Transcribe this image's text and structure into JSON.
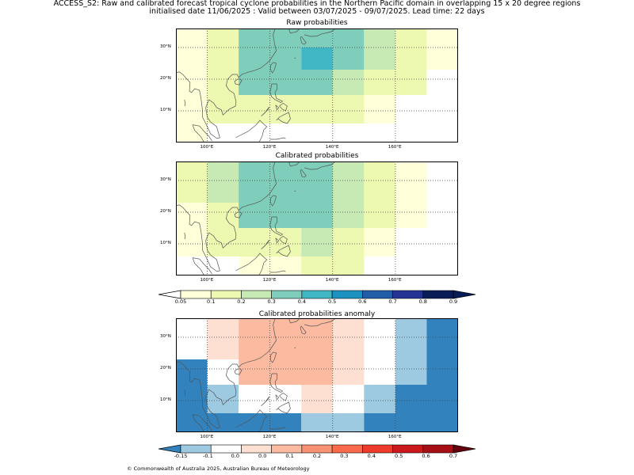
{
  "header": {
    "line1": "ACCESS_S2: Raw and calibrated forecast tropical cyclone probabilities in the Northern Pacific domain in overlapping 15 x 20 degree regions",
    "line2": "initialised date 11/06/2025 :  Valid between 03/07/2025 - 09/07/2025. Lead time: 22 days"
  },
  "panels": {
    "raw_title": "Raw probabilities",
    "cal_title": "Calibrated probabilities",
    "anom_title": "Calibrated probabilities anomaly"
  },
  "axes": {
    "lon_labels": [
      "100°E",
      "120°E",
      "140°E",
      "160°E"
    ],
    "lon_values": [
      100,
      120,
      140,
      160
    ],
    "lat_labels": [
      "30°N",
      "20°N",
      "10°N"
    ],
    "lat_values": [
      30,
      20,
      10
    ],
    "lon_range": [
      90,
      180
    ],
    "lat_range": [
      0,
      36
    ]
  },
  "colorbars": {
    "prob": {
      "ticks": [
        "0.05",
        "0.1",
        "0.2",
        "0.3",
        "0.4",
        "0.5",
        "0.6",
        "0.7",
        "0.8",
        "0.9"
      ],
      "colors": [
        "#ffffd9",
        "#edf8b1",
        "#c7e9b4",
        "#7fcdbb",
        "#41b6c4",
        "#1d91c0",
        "#225ea8",
        "#253494",
        "#081d58"
      ],
      "under_color": "#ffffff",
      "over_color": "#081d58"
    },
    "anom": {
      "ticks": [
        "-0.15",
        "-0.1",
        "0.0",
        "0.0",
        "0.1",
        "0.2",
        "0.3",
        "0.4",
        "0.5",
        "0.6",
        "0.7"
      ],
      "colors": [
        "#9ecae1",
        "#ffffff",
        "#fee0d2",
        "#fcbba1",
        "#fc9272",
        "#fb6a4a",
        "#ef3b2c",
        "#cb181d",
        "#a50f15"
      ],
      "under_color": "#3182bd",
      "over_color": "#67000d"
    }
  },
  "chart_data": [
    {
      "type": "heatmap",
      "title": "Raw probabilities",
      "cells": [
        {
          "lon": [
            90,
            100
          ],
          "lat": [
            23,
            36
          ],
          "value": "0.05-0.1"
        },
        {
          "lon": [
            100,
            110
          ],
          "lat": [
            23,
            36
          ],
          "value": "0.1-0.2"
        },
        {
          "lon": [
            110,
            130
          ],
          "lat": [
            23,
            36
          ],
          "value": "0.3-0.4"
        },
        {
          "lon": [
            130,
            140
          ],
          "lat": [
            30,
            36
          ],
          "value": "0.3-0.4"
        },
        {
          "lon": [
            130,
            140
          ],
          "lat": [
            23,
            30
          ],
          "value": "0.4-0.5"
        },
        {
          "lon": [
            140,
            150
          ],
          "lat": [
            23,
            36
          ],
          "value": "0.3-0.4"
        },
        {
          "lon": [
            150,
            160
          ],
          "lat": [
            23,
            36
          ],
          "value": "0.2-0.3"
        },
        {
          "lon": [
            160,
            170
          ],
          "lat": [
            23,
            36
          ],
          "value": "0.1-0.2"
        },
        {
          "lon": [
            170,
            180
          ],
          "lat": [
            23,
            36
          ],
          "value": "0.05-0.1"
        },
        {
          "lon": [
            90,
            100
          ],
          "lat": [
            15,
            23
          ],
          "value": "0.05-0.1"
        },
        {
          "lon": [
            100,
            110
          ],
          "lat": [
            15,
            23
          ],
          "value": "0.1-0.2"
        },
        {
          "lon": [
            110,
            140
          ],
          "lat": [
            15,
            23
          ],
          "value": "0.3-0.4"
        },
        {
          "lon": [
            140,
            150
          ],
          "lat": [
            15,
            23
          ],
          "value": "0.2-0.3"
        },
        {
          "lon": [
            150,
            170
          ],
          "lat": [
            15,
            23
          ],
          "value": "0.1-0.2"
        },
        {
          "lon": [
            90,
            100
          ],
          "lat": [
            6,
            15
          ],
          "value": "0.05-0.1"
        },
        {
          "lon": [
            100,
            110
          ],
          "lat": [
            6,
            15
          ],
          "value": "0.1-0.2"
        },
        {
          "lon": [
            110,
            150
          ],
          "lat": [
            6,
            15
          ],
          "value": "0.1-0.2"
        },
        {
          "lon": [
            150,
            160
          ],
          "lat": [
            6,
            15
          ],
          "value": "0.05-0.1"
        },
        {
          "lon": [
            90,
            100
          ],
          "lat": [
            0,
            6
          ],
          "value": "0.05-0.1"
        },
        {
          "lon": [
            110,
            150
          ],
          "lat": [
            6,
            6
          ],
          "value": "0.1-0.2"
        }
      ]
    },
    {
      "type": "heatmap",
      "title": "Calibrated probabilities",
      "cells": [
        {
          "lon": [
            90,
            100
          ],
          "lat": [
            23,
            36
          ],
          "value": "0.1-0.2"
        },
        {
          "lon": [
            100,
            110
          ],
          "lat": [
            23,
            36
          ],
          "value": "0.2-0.3"
        },
        {
          "lon": [
            110,
            140
          ],
          "lat": [
            23,
            36
          ],
          "value": "0.3-0.4"
        },
        {
          "lon": [
            140,
            150
          ],
          "lat": [
            23,
            36
          ],
          "value": "0.2-0.3"
        },
        {
          "lon": [
            150,
            160
          ],
          "lat": [
            23,
            36
          ],
          "value": "0.1-0.2"
        },
        {
          "lon": [
            160,
            170
          ],
          "lat": [
            23,
            36
          ],
          "value": "0.05-0.1"
        },
        {
          "lon": [
            90,
            100
          ],
          "lat": [
            15,
            23
          ],
          "value": "0.05-0.1"
        },
        {
          "lon": [
            100,
            110
          ],
          "lat": [
            15,
            23
          ],
          "value": "0.1-0.2"
        },
        {
          "lon": [
            110,
            140
          ],
          "lat": [
            15,
            23
          ],
          "value": "0.3-0.4"
        },
        {
          "lon": [
            140,
            150
          ],
          "lat": [
            15,
            23
          ],
          "value": "0.2-0.3"
        },
        {
          "lon": [
            150,
            160
          ],
          "lat": [
            15,
            23
          ],
          "value": "0.1-0.2"
        },
        {
          "lon": [
            160,
            170
          ],
          "lat": [
            15,
            23
          ],
          "value": "0.05-0.1"
        },
        {
          "lon": [
            90,
            100
          ],
          "lat": [
            6,
            15
          ],
          "value": "0.05-0.1"
        },
        {
          "lon": [
            100,
            110
          ],
          "lat": [
            6,
            15
          ],
          "value": "0.1-0.2"
        },
        {
          "lon": [
            110,
            130
          ],
          "lat": [
            6,
            15
          ],
          "value": "0.1-0.2"
        },
        {
          "lon": [
            130,
            140
          ],
          "lat": [
            6,
            15
          ],
          "value": "0.2-0.3"
        },
        {
          "lon": [
            140,
            150
          ],
          "lat": [
            6,
            15
          ],
          "value": "0.1-0.2"
        },
        {
          "lon": [
            150,
            160
          ],
          "lat": [
            6,
            15
          ],
          "value": "0.05-0.1"
        },
        {
          "lon": [
            110,
            130
          ],
          "lat": [
            0,
            6
          ],
          "value": "0.05-0.1"
        },
        {
          "lon": [
            130,
            150
          ],
          "lat": [
            0,
            6
          ],
          "value": "0.1-0.2"
        }
      ]
    },
    {
      "type": "heatmap",
      "title": "Calibrated probabilities anomaly",
      "cells": [
        {
          "lon": [
            90,
            100
          ],
          "lat": [
            23,
            36
          ],
          "value": "-0.1-0.0"
        },
        {
          "lon": [
            100,
            110
          ],
          "lat": [
            23,
            36
          ],
          "value": "0.0-0.1"
        },
        {
          "lon": [
            110,
            140
          ],
          "lat": [
            23,
            36
          ],
          "value": "0.1-0.2"
        },
        {
          "lon": [
            140,
            150
          ],
          "lat": [
            23,
            36
          ],
          "value": "0.0-0.1"
        },
        {
          "lon": [
            150,
            160
          ],
          "lat": [
            23,
            36
          ],
          "value": "-0.1-0.0"
        },
        {
          "lon": [
            160,
            170
          ],
          "lat": [
            23,
            36
          ],
          "value": "-0.15--0.1"
        },
        {
          "lon": [
            170,
            180
          ],
          "lat": [
            23,
            36
          ],
          "value": "<-0.15"
        },
        {
          "lon": [
            90,
            100
          ],
          "lat": [
            15,
            23
          ],
          "value": "<-0.15"
        },
        {
          "lon": [
            100,
            110
          ],
          "lat": [
            15,
            23
          ],
          "value": "-0.1-0.0"
        },
        {
          "lon": [
            110,
            140
          ],
          "lat": [
            15,
            23
          ],
          "value": "0.1-0.2"
        },
        {
          "lon": [
            140,
            150
          ],
          "lat": [
            15,
            23
          ],
          "value": "0.0-0.1"
        },
        {
          "lon": [
            150,
            160
          ],
          "lat": [
            15,
            23
          ],
          "value": "-0.1-0.0"
        },
        {
          "lon": [
            160,
            170
          ],
          "lat": [
            15,
            23
          ],
          "value": "-0.15--0.1"
        },
        {
          "lon": [
            170,
            180
          ],
          "lat": [
            15,
            23
          ],
          "value": "<-0.15"
        },
        {
          "lon": [
            90,
            100
          ],
          "lat": [
            6,
            15
          ],
          "value": "<-0.15"
        },
        {
          "lon": [
            100,
            110
          ],
          "lat": [
            6,
            15
          ],
          "value": "-0.15--0.1"
        },
        {
          "lon": [
            110,
            130
          ],
          "lat": [
            6,
            15
          ],
          "value": "-0.1-0.0"
        },
        {
          "lon": [
            130,
            140
          ],
          "lat": [
            6,
            15
          ],
          "value": "0.0-0.1"
        },
        {
          "lon": [
            140,
            150
          ],
          "lat": [
            6,
            15
          ],
          "value": "-0.1-0.0"
        },
        {
          "lon": [
            150,
            160
          ],
          "lat": [
            6,
            15
          ],
          "value": "-0.15--0.1"
        },
        {
          "lon": [
            160,
            180
          ],
          "lat": [
            6,
            15
          ],
          "value": "<-0.15"
        },
        {
          "lon": [
            90,
            130
          ],
          "lat": [
            0,
            6
          ],
          "value": "<-0.15"
        },
        {
          "lon": [
            130,
            150
          ],
          "lat": [
            0,
            6
          ],
          "value": "-0.15--0.1"
        },
        {
          "lon": [
            150,
            180
          ],
          "lat": [
            0,
            6
          ],
          "value": "<-0.15"
        }
      ]
    }
  ],
  "footer": {
    "copyright": "© Commonwealth of Australia 2025, Australian Bureau of Meteorology"
  }
}
